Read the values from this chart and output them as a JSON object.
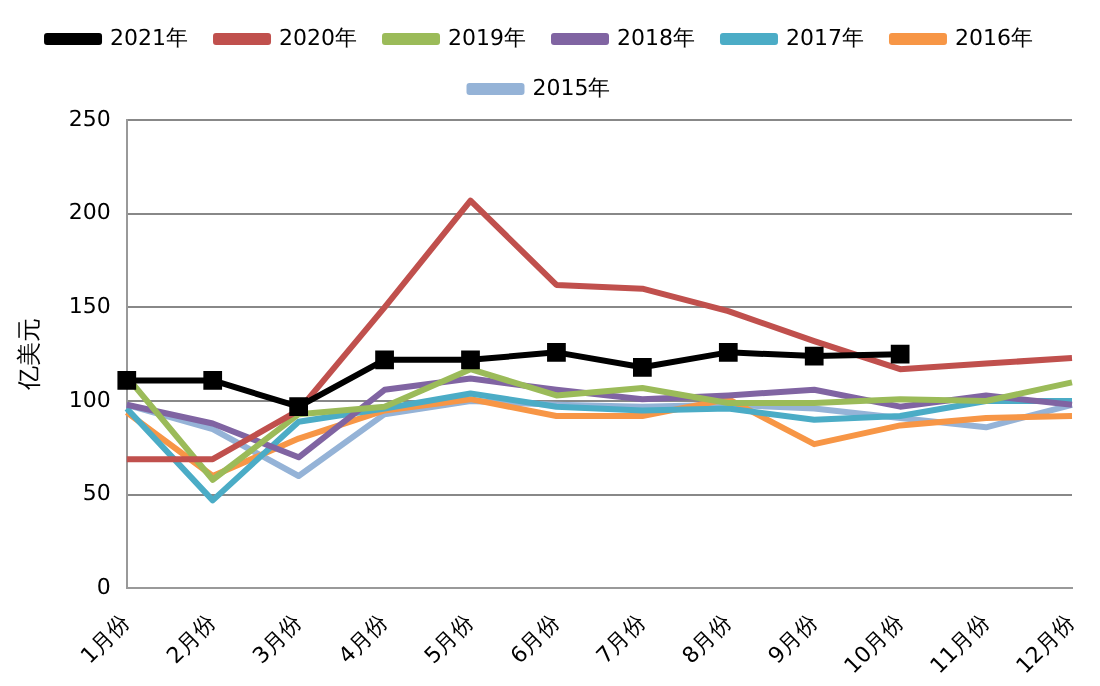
{
  "chart_data": {
    "type": "line",
    "ylabel": "亿美元",
    "categories": [
      "1月份",
      "2月份",
      "3月份",
      "4月份",
      "5月份",
      "6月份",
      "7月份",
      "8月份",
      "9月份",
      "10月份",
      "11月份",
      "12月份"
    ],
    "ylim": [
      0,
      250
    ],
    "yticks": [
      0,
      50,
      100,
      150,
      200,
      250
    ],
    "grid": "y",
    "legend": "top",
    "line_style": "solid",
    "series": [
      {
        "name": "2021年",
        "color": "#000000",
        "marker": "square",
        "values": [
          111,
          111,
          97,
          122,
          122,
          126,
          118,
          126,
          124,
          125,
          null,
          null
        ]
      },
      {
        "name": "2020年",
        "color": "#c0504d",
        "values": [
          69,
          69,
          95,
          150,
          207,
          162,
          160,
          148,
          132,
          117,
          120,
          123
        ]
      },
      {
        "name": "2019年",
        "color": "#9bbb59",
        "values": [
          113,
          58,
          93,
          97,
          117,
          103,
          107,
          99,
          99,
          101,
          100,
          110
        ]
      },
      {
        "name": "2018年",
        "color": "#8064a2",
        "values": [
          98,
          88,
          70,
          106,
          112,
          106,
          101,
          103,
          106,
          97,
          103,
          98
        ]
      },
      {
        "name": "2017年",
        "color": "#4bacc6",
        "values": [
          96,
          47,
          89,
          96,
          104,
          97,
          95,
          96,
          90,
          92,
          100,
          100
        ]
      },
      {
        "name": "2016年",
        "color": "#f79646",
        "values": [
          94,
          60,
          80,
          95,
          101,
          92,
          92,
          101,
          77,
          87,
          91,
          92
        ]
      },
      {
        "name": "2015年",
        "color": "#95b3d7",
        "values": [
          98,
          85,
          60,
          93,
          100,
          98,
          97,
          98,
          96,
          91,
          86,
          98
        ]
      }
    ]
  }
}
